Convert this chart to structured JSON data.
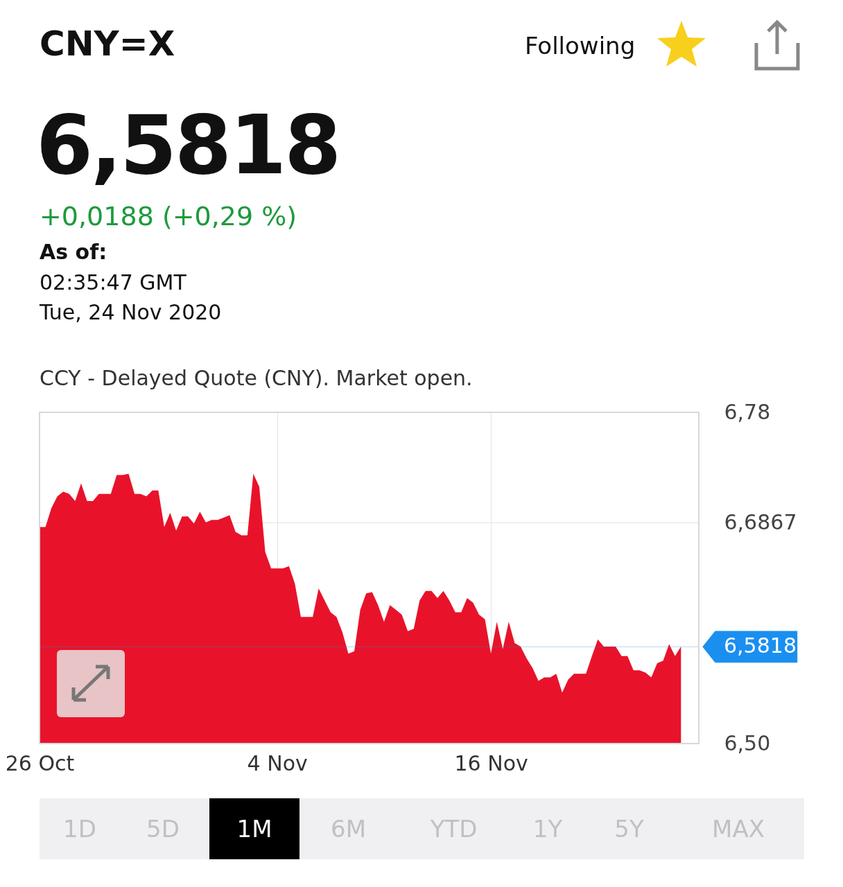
{
  "chart_data": {
    "type": "area",
    "title": "CNY=X",
    "annotations": [
      "6,5818",
      "+0,0188 (+0,29 %)",
      "As of:",
      "02:35:47 GMT",
      "Tue, 24 Nov 2020",
      "CCY - Delayed Quote (CNY). Market open.",
      "Following",
      "1D",
      "5D",
      "1M",
      "6M",
      "YTD",
      "1Y",
      "5Y",
      "MAX"
    ],
    "categories": [
      "26 Oct",
      null,
      null,
      null,
      null,
      null,
      null,
      null,
      null,
      null,
      null,
      null,
      null,
      null,
      null,
      null,
      null,
      null,
      null,
      null,
      null,
      null,
      null,
      null,
      null,
      null,
      null,
      null,
      null,
      null,
      null,
      null,
      null,
      null,
      null,
      null,
      null,
      null,
      null,
      null,
      "4 Nov",
      null,
      null,
      null,
      null,
      null,
      null,
      null,
      null,
      null,
      null,
      null,
      null,
      null,
      null,
      null,
      null,
      null,
      null,
      null,
      null,
      null,
      null,
      null,
      null,
      null,
      null,
      null,
      null,
      null,
      null,
      null,
      null,
      null,
      null,
      null,
      "16 Nov",
      null,
      null,
      null,
      null,
      null,
      null,
      null,
      null,
      null,
      null,
      null,
      null,
      null,
      null,
      null,
      null,
      null,
      null,
      null,
      null,
      null,
      null,
      null,
      null,
      null,
      null,
      null,
      null,
      null,
      null,
      null,
      null,
      null,
      null,
      null
    ],
    "series": [
      {
        "color": "#e8132a",
        "values": [
          6.683,
          6.683,
          6.699,
          6.709,
          6.713,
          6.711,
          6.705,
          6.72,
          6.705,
          6.705,
          6.711,
          6.711,
          6.711,
          6.727,
          6.727,
          6.728,
          6.711,
          6.711,
          6.709,
          6.714,
          6.714,
          6.683,
          6.695,
          6.68,
          6.692,
          6.692,
          6.686,
          6.696,
          6.687,
          6.689,
          6.689,
          6.691,
          6.693,
          6.679,
          6.676,
          6.676,
          6.728,
          6.717,
          6.662,
          6.648,
          6.648,
          6.648,
          6.65,
          6.635,
          6.607,
          6.607,
          6.607,
          6.631,
          6.621,
          6.611,
          6.607,
          6.594,
          6.576,
          6.578,
          6.613,
          6.627,
          6.628,
          6.617,
          6.603,
          6.617,
          6.613,
          6.609,
          6.595,
          6.597,
          6.621,
          6.629,
          6.629,
          6.623,
          6.629,
          6.621,
          6.611,
          6.611,
          6.623,
          6.619,
          6.609,
          6.605,
          6.576,
          6.603,
          6.58,
          6.603,
          6.585,
          6.582,
          6.572,
          6.564,
          6.553,
          6.556,
          6.556,
          6.559,
          6.543,
          6.554,
          6.559,
          6.559,
          6.559,
          6.574,
          6.588,
          6.582,
          6.582,
          6.582,
          6.574,
          6.574,
          6.562,
          6.562,
          6.56,
          6.556,
          6.568,
          6.57,
          6.584,
          6.574,
          6.582,
          null,
          null,
          null
        ]
      }
    ],
    "ylim": [
      6.5,
      6.78
    ],
    "yticks": [
      {
        "value": 6.5,
        "label": "6,50"
      },
      {
        "value": 6.6867,
        "label": "6,6867"
      },
      {
        "value": 6.78,
        "label": "6,78"
      }
    ],
    "grid": true,
    "ref_lines": [
      {
        "axis": "y",
        "value": 6.5818,
        "label": "6,5818",
        "color": "#1a8ff0"
      }
    ]
  }
}
